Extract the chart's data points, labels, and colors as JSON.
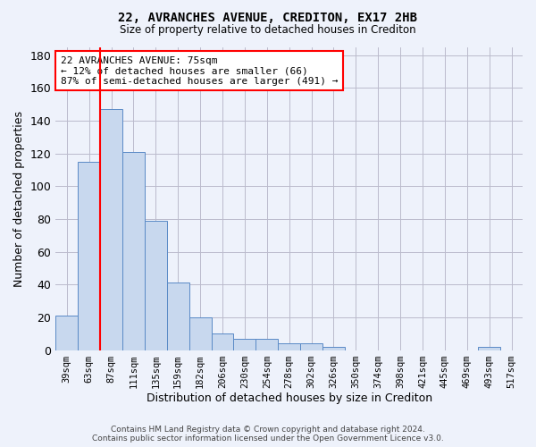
{
  "title_line1": "22, AVRANCHES AVENUE, CREDITON, EX17 2HB",
  "title_line2": "Size of property relative to detached houses in Crediton",
  "xlabel": "Distribution of detached houses by size in Crediton",
  "ylabel": "Number of detached properties",
  "bar_color": "#c8d8ee",
  "bar_edge_color": "#5a8ac6",
  "grid_color": "#bbbbcc",
  "bg_color": "#eef2fb",
  "categories": [
    "39sqm",
    "63sqm",
    "87sqm",
    "111sqm",
    "135sqm",
    "159sqm",
    "182sqm",
    "206sqm",
    "230sqm",
    "254sqm",
    "278sqm",
    "302sqm",
    "326sqm",
    "350sqm",
    "374sqm",
    "398sqm",
    "421sqm",
    "445sqm",
    "469sqm",
    "493sqm",
    "517sqm"
  ],
  "values": [
    21,
    115,
    147,
    121,
    79,
    41,
    20,
    10,
    7,
    7,
    4,
    4,
    2,
    0,
    0,
    0,
    0,
    0,
    0,
    2,
    0
  ],
  "ylim": [
    0,
    185
  ],
  "yticks": [
    0,
    20,
    40,
    60,
    80,
    100,
    120,
    140,
    160,
    180
  ],
  "vline_x": 1.5,
  "annotation_text": "22 AVRANCHES AVENUE: 75sqm\n← 12% of detached houses are smaller (66)\n87% of semi-detached houses are larger (491) →",
  "annotation_box_color": "white",
  "annotation_box_edge": "red",
  "vline_color": "red",
  "footer_line1": "Contains HM Land Registry data © Crown copyright and database right 2024.",
  "footer_line2": "Contains public sector information licensed under the Open Government Licence v3.0."
}
